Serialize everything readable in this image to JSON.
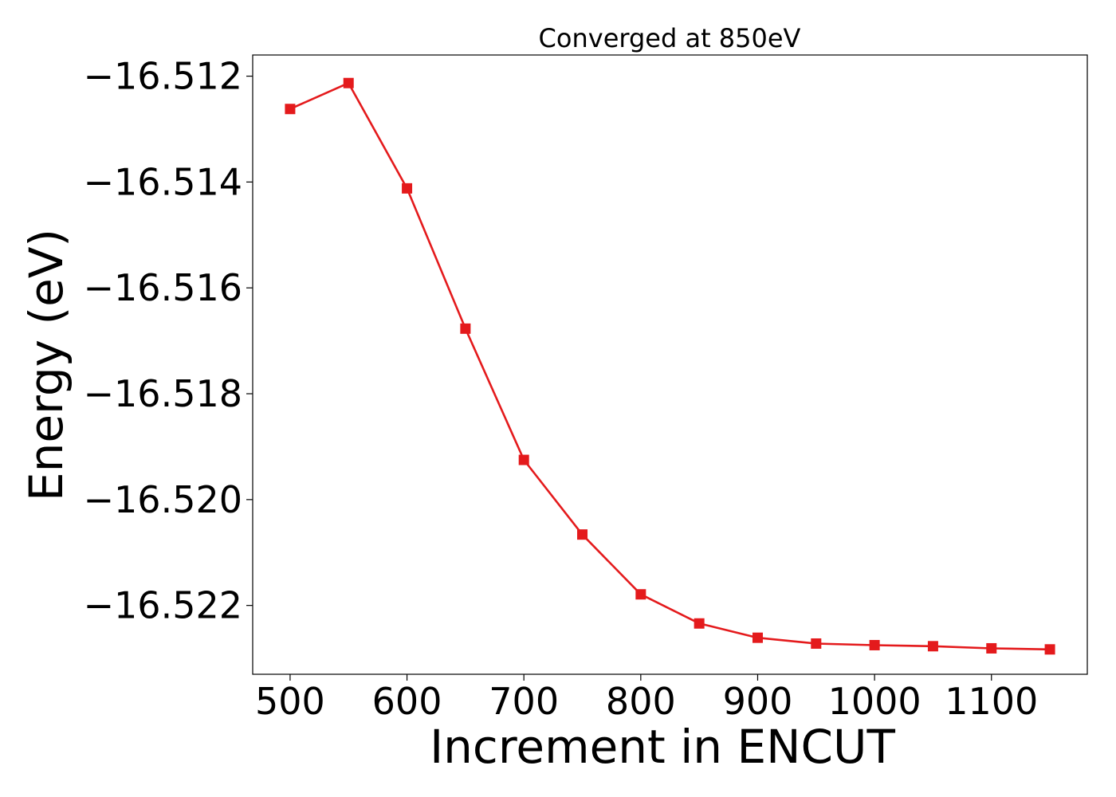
{
  "chart_data": {
    "type": "line",
    "title": "Converged at 850eV",
    "xlabel": "Increment in ENCUT",
    "ylabel": "Energy (eV)",
    "xlim": [
      468,
      1182
    ],
    "ylim": [
      -16.5233,
      -16.5116
    ],
    "xticks": [
      500,
      600,
      700,
      800,
      900,
      1000,
      1100
    ],
    "xtick_labels": [
      "500",
      "600",
      "700",
      "800",
      "900",
      "1000",
      "1100"
    ],
    "yticks": [
      -16.512,
      -16.514,
      -16.516,
      -16.518,
      -16.52,
      -16.522
    ],
    "ytick_labels": [
      "−16.512",
      "−16.514",
      "−16.516",
      "−16.518",
      "−16.520",
      "−16.522"
    ],
    "grid": false,
    "series": [
      {
        "color": "#e41a1c",
        "marker": "square",
        "x": [
          500,
          550,
          600,
          650,
          700,
          750,
          800,
          850,
          900,
          950,
          1000,
          1050,
          1100,
          1150
        ],
        "y": [
          -16.51262,
          -16.51213,
          -16.51412,
          -16.51677,
          -16.51925,
          -16.52066,
          -16.52179,
          -16.52234,
          -16.52261,
          -16.52272,
          -16.52275,
          -16.52277,
          -16.52281,
          -16.52283
        ]
      }
    ]
  }
}
